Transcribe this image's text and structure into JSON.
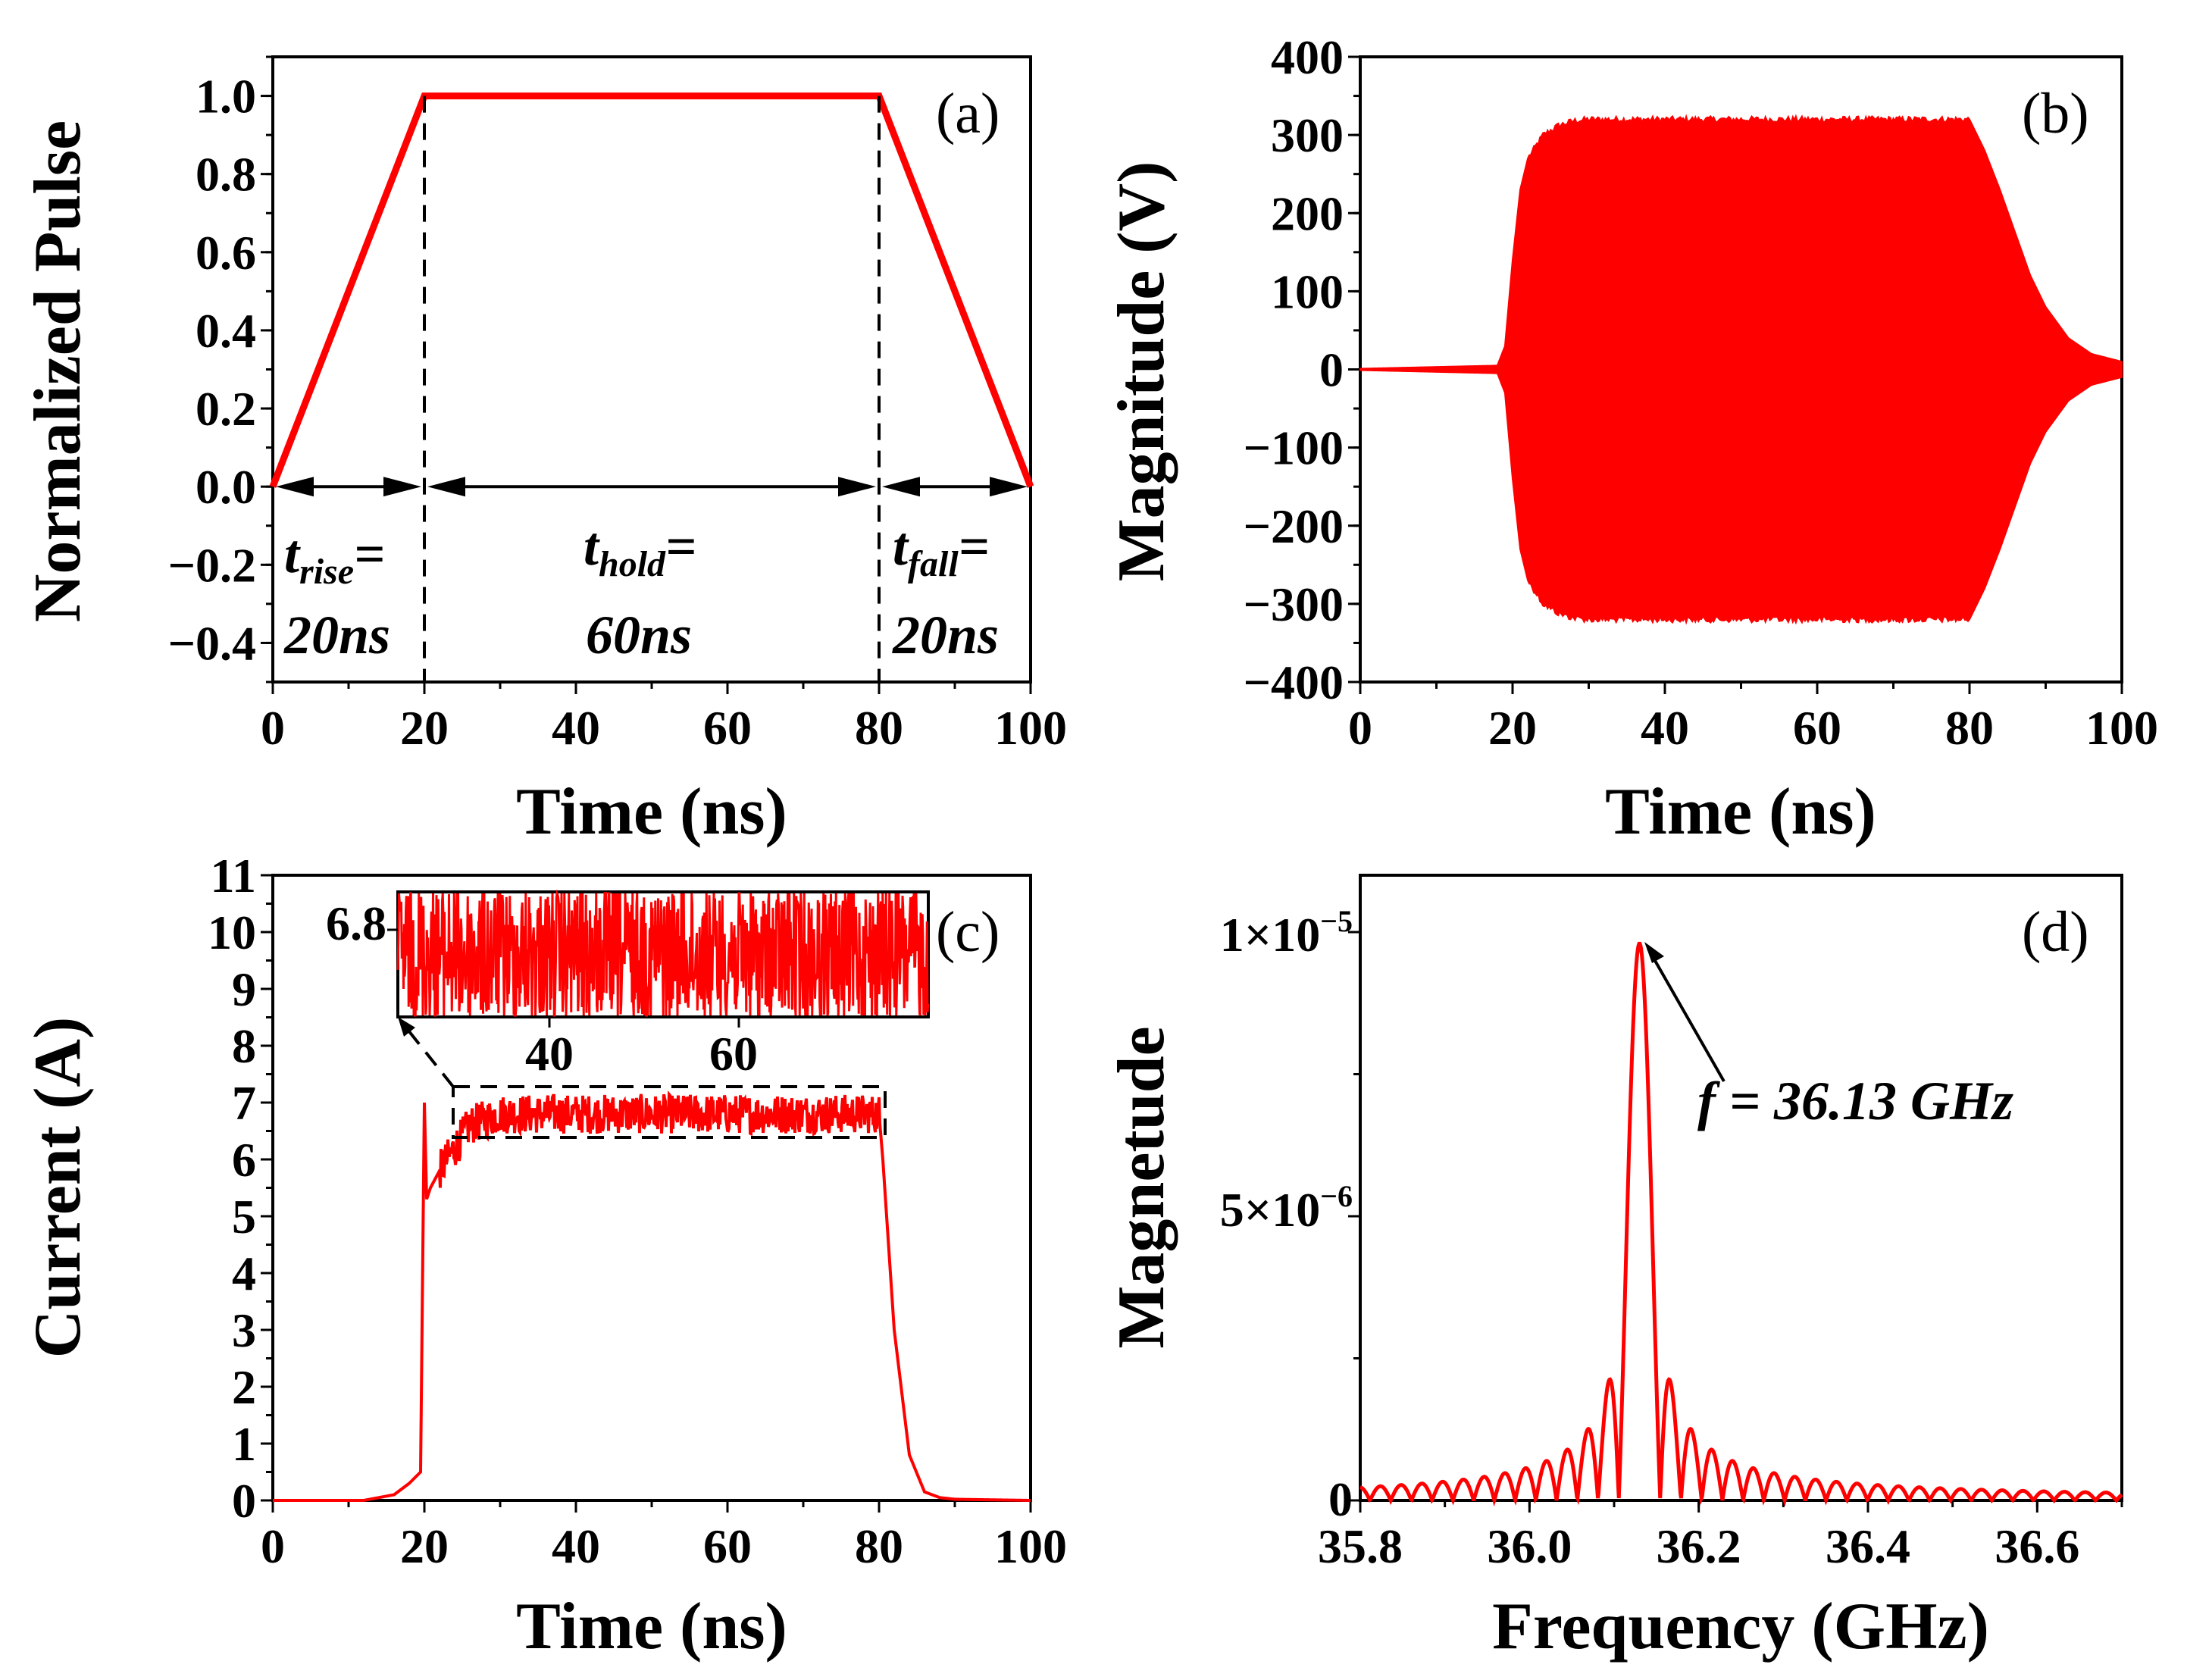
{
  "chart_data": [
    {
      "panel": "(a)",
      "type": "line",
      "xlabel": "Time (ns)",
      "ylabel": "Normalized Pulse",
      "xlim": [
        0,
        100
      ],
      "ylim": [
        -0.5,
        1.1
      ],
      "xticks": [
        "0",
        "20",
        "40",
        "60",
        "80",
        "100"
      ],
      "yticks": [
        "1.0",
        "0.8",
        "0.6",
        "0.4",
        "0.2",
        "0.0",
        "−0.2",
        "−0.4"
      ],
      "series": [
        {
          "x": [
            0,
            20,
            80,
            100
          ],
          "y": [
            0,
            1,
            1,
            0
          ],
          "color": "#ff0000"
        }
      ],
      "annotations": {
        "rise_t": "t",
        "rise_sub": "rise",
        "rise_eq": "=",
        "rise_val": "20ns",
        "hold_t": "t",
        "hold_sub": "hold",
        "hold_eq": "=",
        "hold_val": "60ns",
        "fall_t": "t",
        "fall_sub": "fall",
        "fall_eq": "=",
        "fall_val": "20ns"
      }
    },
    {
      "panel": "(b)",
      "type": "line",
      "xlabel": "Time (ns)",
      "ylabel": "Magnitude (V)",
      "xlim": [
        0,
        100
      ],
      "ylim": [
        -400,
        400
      ],
      "xticks": [
        "0",
        "20",
        "40",
        "60",
        "80",
        "100"
      ],
      "yticks": [
        "400",
        "300",
        "200",
        "100",
        "0",
        "−100",
        "−200",
        "−300",
        "−400"
      ],
      "envelope": {
        "x": [
          0,
          18,
          19,
          20,
          21,
          22,
          24,
          26,
          28,
          30,
          80,
          82,
          84,
          86,
          88,
          90,
          93,
          96,
          100
        ],
        "y": [
          1,
          5,
          30,
          140,
          230,
          270,
          300,
          312,
          318,
          320,
          320,
          280,
          230,
          175,
          120,
          80,
          40,
          20,
          10
        ]
      },
      "color": "#ff0000"
    },
    {
      "panel": "(c)",
      "type": "line",
      "xlabel": "Time (ns)",
      "ylabel": "Current (A)",
      "xlim": [
        0,
        100
      ],
      "ylim": [
        0,
        11
      ],
      "xticks": [
        "0",
        "20",
        "40",
        "60",
        "80",
        "100"
      ],
      "yticks": [
        "0",
        "1",
        "2",
        "3",
        "4",
        "5",
        "6",
        "7",
        "8",
        "9",
        "10",
        "11"
      ],
      "series": [
        {
          "x": [
            0,
            12,
            16,
            18,
            19.5,
            20,
            20.3,
            20.8,
            22,
            24,
            26,
            30,
            80,
            80.5,
            82,
            84,
            86,
            88,
            90,
            100
          ],
          "y": [
            0,
            0,
            0.1,
            0.3,
            0.5,
            7.0,
            5.3,
            5.5,
            5.8,
            6.2,
            6.6,
            6.8,
            6.8,
            6.0,
            3.0,
            0.8,
            0.15,
            0.05,
            0.02,
            0
          ],
          "color": "#ff0000"
        }
      ],
      "inset": {
        "xlim": [
          24,
          80
        ],
        "xticks": [
          "40",
          "60"
        ],
        "yticks": [
          "6.8"
        ],
        "center": 6.8
      }
    },
    {
      "panel": "(d)",
      "type": "line",
      "xlabel": "Frequency (GHz)",
      "ylabel": "Magnetude",
      "xlim": [
        35.8,
        36.7
      ],
      "ylim": [
        0,
        1.1e-05
      ],
      "xticks": [
        "35.8",
        "36.0",
        "36.2",
        "36.4",
        "36.6"
      ],
      "yticks": {
        "top_mant": "1×10",
        "top_exp": "−5",
        "mid_mant": "5×10",
        "mid_exp": "−6",
        "zero": "0"
      },
      "peak": {
        "frequency": 36.13,
        "magnitude": 9.8e-06,
        "label": "f = 36.13 GHz"
      },
      "color": "#ff0000"
    }
  ]
}
